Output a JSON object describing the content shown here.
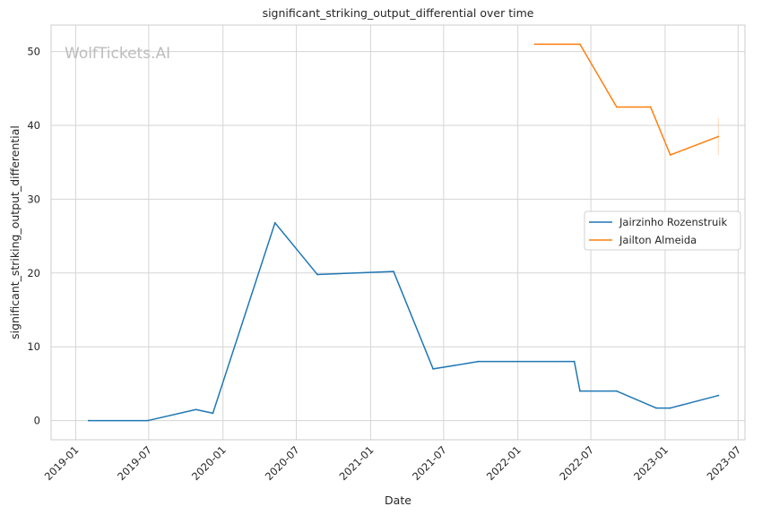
{
  "chart_data": {
    "type": "line",
    "title": "significant_striking_output_differential over time",
    "xlabel": "Date",
    "ylabel": "significant_striking_output_differential",
    "watermark": "WolfTickets.AI",
    "x_ticks": [
      "2019-01",
      "2019-07",
      "2020-01",
      "2020-07",
      "2021-01",
      "2021-07",
      "2022-01",
      "2022-07",
      "2023-01",
      "2023-07"
    ],
    "y_ticks": [
      0,
      10,
      20,
      30,
      40,
      50
    ],
    "xlim": [
      "2018-11-01",
      "2023-07-18"
    ],
    "ylim": [
      -2.6,
      53.6
    ],
    "grid": true,
    "legend_position": "center-right",
    "series": [
      {
        "name": "Jairzinho Rozenstruik",
        "color": "#1f77b4",
        "points": [
          [
            "2019-02-02",
            0
          ],
          [
            "2019-06-29",
            0
          ],
          [
            "2019-10-26",
            1.5
          ],
          [
            "2019-12-07",
            1.0
          ],
          [
            "2020-05-09",
            26.8
          ],
          [
            "2020-08-22",
            19.8
          ],
          [
            "2021-02-27",
            20.2
          ],
          [
            "2021-06-05",
            7.0
          ],
          [
            "2021-09-25",
            8.0
          ],
          [
            "2022-05-21",
            8.0
          ],
          [
            "2022-06-04",
            4.0
          ],
          [
            "2022-09-03",
            4.0
          ],
          [
            "2022-12-10",
            1.7
          ],
          [
            "2023-01-14",
            1.7
          ],
          [
            "2023-05-13",
            3.4
          ]
        ]
      },
      {
        "name": "Jailton Almeida",
        "color": "#ff7f0e",
        "points": [
          [
            "2022-02-12",
            51.0
          ],
          [
            "2022-06-04",
            51.0
          ],
          [
            "2022-09-03",
            42.5
          ],
          [
            "2022-11-26",
            42.5
          ],
          [
            "2023-01-14",
            36.0
          ],
          [
            "2023-05-13",
            38.5
          ]
        ]
      }
    ]
  }
}
